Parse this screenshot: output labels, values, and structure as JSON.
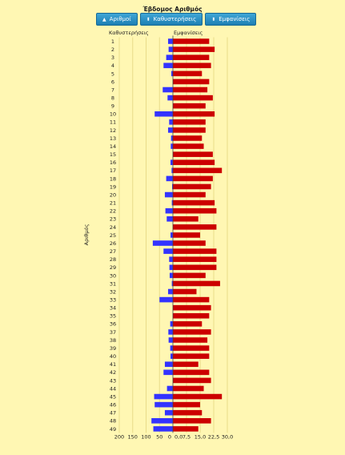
{
  "header": {
    "title": "Έβδομος Αριθμός",
    "buttons": [
      {
        "label": "Αριθμοί",
        "icon": "caret-up-icon"
      },
      {
        "label": "Καθυστερήσεις",
        "icon": "caret-updown-icon"
      },
      {
        "label": "Εμφανίσεις",
        "icon": "caret-updown-icon"
      }
    ]
  },
  "colors": {
    "background": "#fff7b3",
    "delays_bar": "#3333ff",
    "appearances_bar": "#cc0000",
    "button": "#2a8fc4",
    "grid": "#e8dc8a"
  },
  "chart_data": {
    "type": "bar",
    "orientation": "horizontal",
    "ylabel": "Αριθμός",
    "categories": [
      "1",
      "2",
      "3",
      "4",
      "5",
      "6",
      "7",
      "8",
      "9",
      "10",
      "11",
      "12",
      "13",
      "14",
      "15",
      "16",
      "17",
      "18",
      "19",
      "20",
      "21",
      "22",
      "23",
      "24",
      "25",
      "26",
      "27",
      "28",
      "29",
      "30",
      "31",
      "32",
      "33",
      "34",
      "35",
      "36",
      "37",
      "38",
      "39",
      "40",
      "41",
      "42",
      "43",
      "44",
      "45",
      "46",
      "47",
      "48",
      "49"
    ],
    "series": [
      {
        "name": "Καθυστερήσεις",
        "side": "left",
        "values": [
          18,
          16,
          25,
          35,
          6,
          0,
          38,
          20,
          0,
          68,
          14,
          18,
          7,
          8,
          0,
          9,
          5,
          25,
          3,
          30,
          4,
          28,
          23,
          0,
          9,
          75,
          35,
          14,
          13,
          12,
          4,
          18,
          50,
          0,
          0,
          10,
          17,
          16,
          10,
          9,
          30,
          35,
          0,
          22,
          70,
          68,
          30,
          80,
          73
        ]
      },
      {
        "name": "Εμφανίσεις",
        "side": "right",
        "values": [
          20,
          23,
          20,
          21,
          16,
          20,
          19,
          22,
          18,
          23,
          18,
          18,
          16,
          17,
          22,
          23,
          27,
          22,
          21,
          18,
          23,
          24,
          14,
          24,
          15,
          18,
          24,
          24,
          24,
          18,
          26,
          13,
          20,
          21,
          20,
          16,
          21,
          19,
          20,
          20,
          14,
          20,
          21,
          17,
          27,
          15,
          16,
          21,
          14
        ]
      }
    ],
    "left_axis": {
      "ticks": [
        200,
        150,
        100,
        50,
        0
      ],
      "lim": [
        0,
        200
      ]
    },
    "right_axis": {
      "ticks": [
        "0,0",
        "7,5",
        "15,0",
        "22,5",
        "30,0"
      ],
      "tick_values": [
        0,
        7.5,
        15,
        22.5,
        30
      ],
      "lim": [
        0,
        30
      ]
    },
    "grid": true
  }
}
